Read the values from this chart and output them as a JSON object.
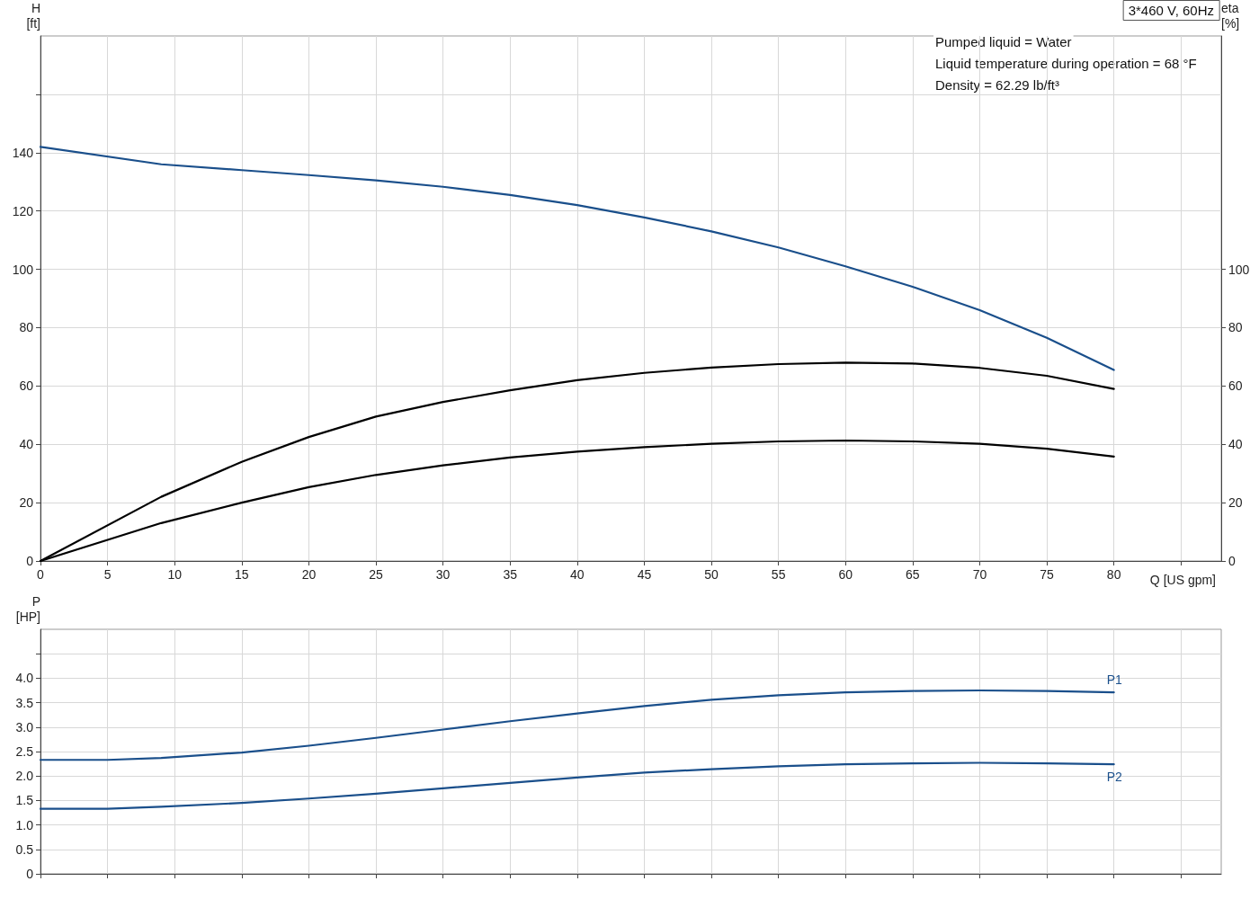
{
  "chart_data": [
    {
      "type": "line",
      "title": "3*460 V, 60Hz",
      "xlabel": "Q [US gpm]",
      "ylabel": "H\n[ft]",
      "y2label": "eta\n[%]",
      "annotations": [
        "Pumped liquid = Water",
        "Liquid temperature during operation = 68 °F",
        "Density = 62.29 lb/ft³"
      ],
      "x": [
        0,
        9,
        15,
        20,
        25,
        30,
        35,
        40,
        45,
        50,
        55,
        60,
        65,
        70,
        75,
        80
      ],
      "series": [
        {
          "color": "#1a4f8b",
          "values": [
            142,
            136,
            134,
            132.3,
            130.5,
            128.3,
            125.5,
            122,
            117.8,
            113,
            107.5,
            101,
            94,
            86,
            76.5,
            65.5
          ]
        },
        {
          "color": "#000000",
          "values": [
            0,
            22,
            34,
            42.5,
            49.5,
            54.5,
            58.5,
            62,
            64.5,
            66.3,
            67.5,
            68,
            67.7,
            66.2,
            63.5,
            59
          ]
        },
        {
          "color": "#000000",
          "values": [
            0,
            13,
            20,
            25.3,
            29.5,
            32.8,
            35.5,
            37.5,
            39,
            40.2,
            41,
            41.3,
            41,
            40.2,
            38.5,
            35.8
          ]
        }
      ],
      "xlim": [
        0,
        88
      ],
      "xticks": [
        0,
        5,
        10,
        15,
        20,
        25,
        30,
        35,
        40,
        45,
        50,
        55,
        60,
        65,
        70,
        75,
        80,
        {
          "value": 85,
          "label": null
        }
      ],
      "ylim": [
        0,
        180
      ],
      "yticks": [
        0,
        20,
        40,
        60,
        80,
        100,
        120,
        140,
        {
          "value": 160,
          "label": null
        }
      ],
      "y2lim": [
        0,
        180
      ],
      "y2ticks": [
        0,
        20,
        40,
        60,
        80,
        100
      ],
      "grid": true,
      "legend": false,
      "marker": "none",
      "line_style": "solid"
    },
    {
      "type": "line",
      "ylabel": "P\n[HP]",
      "x": [
        0,
        5,
        9,
        15,
        20,
        25,
        30,
        35,
        40,
        45,
        50,
        55,
        60,
        65,
        70,
        75,
        80
      ],
      "series": [
        {
          "name": "P1",
          "color": "#1a4f8b",
          "values": [
            2.33,
            2.33,
            2.37,
            2.48,
            2.62,
            2.78,
            2.95,
            3.12,
            3.28,
            3.43,
            3.56,
            3.65,
            3.71,
            3.74,
            3.75,
            3.74,
            3.71
          ]
        },
        {
          "name": "P2",
          "color": "#1a4f8b",
          "values": [
            1.33,
            1.33,
            1.37,
            1.45,
            1.54,
            1.64,
            1.75,
            1.86,
            1.97,
            2.07,
            2.14,
            2.2,
            2.24,
            2.26,
            2.27,
            2.26,
            2.24
          ]
        }
      ],
      "xlim": [
        0,
        88
      ],
      "xticks": [
        0,
        5,
        10,
        15,
        20,
        25,
        30,
        35,
        40,
        45,
        50,
        55,
        60,
        65,
        70,
        75,
        80,
        85
      ],
      "ylim": [
        0,
        5
      ],
      "yticks": [
        {
          "value": 0,
          "label": "0"
        },
        {
          "value": 0.5,
          "label": "0.5"
        },
        {
          "value": 1,
          "label": "1.0"
        },
        {
          "value": 1.5,
          "label": "1.5"
        },
        {
          "value": 2,
          "label": "2.0"
        },
        {
          "value": 2.5,
          "label": "2.5"
        },
        {
          "value": 3,
          "label": "3.0"
        },
        {
          "value": 3.5,
          "label": "3.5"
        },
        {
          "value": 4,
          "label": "4.0"
        },
        {
          "value": 4.5,
          "label": null
        }
      ],
      "tick_labels": "y",
      "grid": true,
      "legend": false,
      "marker": "none",
      "line_style": "solid"
    }
  ]
}
